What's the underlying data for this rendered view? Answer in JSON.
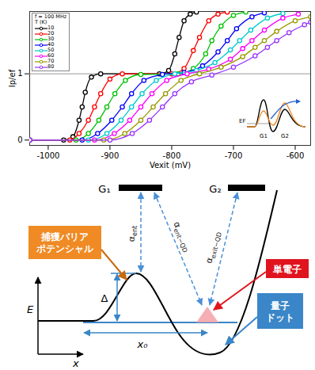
{
  "chart_data": {
    "type": "line",
    "x_label": "Vexit (mV)",
    "y_label": "Ip/ef",
    "xlim": [
      -1030,
      -575
    ],
    "ylim": [
      -0.08,
      1.94
    ],
    "xticks": [
      -1000,
      -900,
      -800,
      -700,
      -600
    ],
    "yticks": [
      0,
      1
    ],
    "grid": false,
    "legend": "top-left",
    "marker": "circle",
    "frequency": "f = 100 MHz",
    "legend_title": "T (K)",
    "reference_line": 1,
    "inset_labels": {
      "fermi": "EF",
      "gate1": "G1",
      "gate2": "G2"
    },
    "series": [
      {
        "name": "10",
        "color": "#000000",
        "x": [
          -1030,
          -975,
          -960,
          -950,
          -945,
          -940,
          -930,
          -915,
          -820,
          -805,
          -795,
          -788,
          -780,
          -770,
          -760
        ],
        "values": [
          0,
          0,
          0.05,
          0.3,
          0.5,
          0.72,
          0.95,
          1.0,
          1.0,
          1.05,
          1.3,
          1.55,
          1.8,
          1.9,
          1.93
        ]
      },
      {
        "name": "20",
        "color": "#ff0000",
        "x": [
          -1030,
          -965,
          -950,
          -935,
          -925,
          -915,
          -900,
          -880,
          -800,
          -780,
          -765,
          -755,
          -740,
          -725,
          -710
        ],
        "values": [
          0,
          0,
          0.1,
          0.3,
          0.5,
          0.7,
          0.92,
          1.0,
          1.0,
          1.08,
          1.35,
          1.55,
          1.8,
          1.9,
          1.93
        ]
      },
      {
        "name": "30",
        "color": "#00c000",
        "x": [
          -1030,
          -955,
          -935,
          -918,
          -905,
          -892,
          -875,
          -850,
          -790,
          -765,
          -745,
          -735,
          -720,
          -700,
          -680
        ],
        "values": [
          0,
          0,
          0.1,
          0.3,
          0.5,
          0.7,
          0.9,
          0.99,
          1.0,
          1.08,
          1.3,
          1.5,
          1.72,
          1.88,
          1.93
        ]
      },
      {
        "name": "40",
        "color": "#0000ff",
        "x": [
          -1030,
          -945,
          -920,
          -897,
          -880,
          -865,
          -845,
          -815,
          -780,
          -750,
          -725,
          -710,
          -695,
          -670,
          -650
        ],
        "values": [
          0,
          0,
          0.1,
          0.3,
          0.5,
          0.7,
          0.9,
          0.99,
          1.02,
          1.12,
          1.33,
          1.5,
          1.68,
          1.86,
          1.92
        ]
      },
      {
        "name": "50",
        "color": "#00cccc",
        "x": [
          -1030,
          -935,
          -905,
          -882,
          -865,
          -848,
          -825,
          -795,
          -760,
          -730,
          -705,
          -690,
          -672,
          -645,
          -620
        ],
        "values": [
          0,
          0,
          0.1,
          0.3,
          0.5,
          0.7,
          0.9,
          1.0,
          1.05,
          1.17,
          1.36,
          1.5,
          1.66,
          1.84,
          1.91
        ]
      },
      {
        "name": "60",
        "color": "#ff00ff",
        "x": [
          -1030,
          -925,
          -893,
          -868,
          -850,
          -832,
          -808,
          -775,
          -740,
          -705,
          -685,
          -670,
          -650,
          -620,
          -595
        ],
        "values": [
          0,
          0,
          0.1,
          0.3,
          0.5,
          0.7,
          0.9,
          1.0,
          1.07,
          1.22,
          1.38,
          1.5,
          1.66,
          1.84,
          1.9
        ]
      },
      {
        "name": "70",
        "color": "#999900",
        "x": [
          -1030,
          -910,
          -876,
          -850,
          -830,
          -810,
          -785,
          -755,
          -720,
          -685,
          -665,
          -650,
          -630,
          -600,
          -575
        ],
        "values": [
          0,
          0,
          0.1,
          0.3,
          0.5,
          0.7,
          0.9,
          1.0,
          1.1,
          1.26,
          1.4,
          1.5,
          1.64,
          1.8,
          1.86
        ]
      },
      {
        "name": "80",
        "color": "#9933ff",
        "x": [
          -1030,
          -900,
          -864,
          -836,
          -815,
          -795,
          -768,
          -735,
          -700,
          -665,
          -645,
          -630,
          -610,
          -585,
          -575
        ],
        "values": [
          0,
          0,
          0.1,
          0.3,
          0.5,
          0.7,
          0.88,
          0.98,
          1.1,
          1.27,
          1.4,
          1.5,
          1.62,
          1.74,
          1.78
        ]
      }
    ]
  },
  "diagram": {
    "gates": [
      "G₁",
      "G₂"
    ],
    "barrier_label": [
      "捕獲バリア",
      "ポテンシャル"
    ],
    "electron_label": "単電子",
    "dot_label": [
      "量子",
      "ドット"
    ],
    "lever_arms": [
      "αent",
      "αent−QD",
      "αexit−QD"
    ],
    "barrier_height": "Δ",
    "distance": "x₀",
    "energy_axis": "E",
    "position_axis": "x"
  }
}
